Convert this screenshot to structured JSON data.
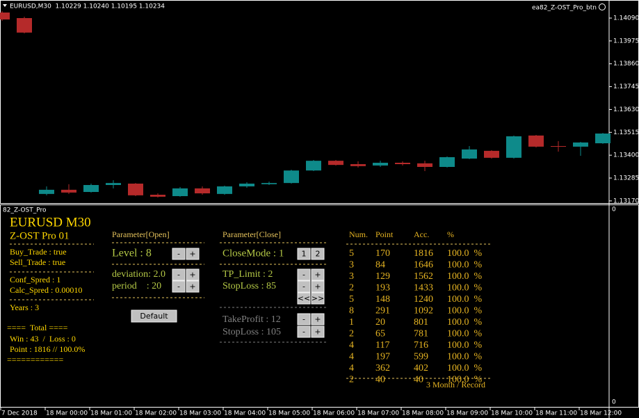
{
  "header": {
    "symbol": "EURUSD,M30  1.10229 1.10240 1.10195 1.10234",
    "button": "ea82_Z-OST_Pro_btn"
  },
  "chart_data": {
    "type": "candlestick",
    "bull_color": "#0e8a8a",
    "bear_color": "#b52a2a",
    "ylim": [
      1.13159,
      1.14132
    ],
    "yticks": [
      {
        "value": 1.1409,
        "label": "1.14090"
      },
      {
        "value": 1.13975,
        "label": "1.13975"
      },
      {
        "value": 1.1386,
        "label": "1.13860"
      },
      {
        "value": 1.13745,
        "label": "1.13745"
      },
      {
        "value": 1.1363,
        "label": "1.13630"
      },
      {
        "value": 1.13515,
        "label": "1.13515"
      },
      {
        "value": 1.134,
        "label": "1.13400"
      },
      {
        "value": 1.13285,
        "label": "1.13285"
      },
      {
        "value": 1.1317,
        "label": "1.13170"
      }
    ],
    "candles": [
      {
        "o": 1.14118,
        "h": 1.14125,
        "l": 1.14076,
        "c": 1.14083
      },
      {
        "o": 1.1409,
        "h": 1.14097,
        "l": 1.14013,
        "c": 1.14017
      },
      {
        "o": 1.13205,
        "h": 1.13243,
        "l": 1.13198,
        "c": 1.13226
      },
      {
        "o": 1.13226,
        "h": 1.13254,
        "l": 1.13205,
        "c": 1.13212
      },
      {
        "o": 1.13215,
        "h": 1.13257,
        "l": 1.13212,
        "c": 1.1325
      },
      {
        "o": 1.1325,
        "h": 1.13274,
        "l": 1.13233,
        "c": 1.1326
      },
      {
        "o": 1.13257,
        "h": 1.1326,
        "l": 1.13194,
        "c": 1.13198
      },
      {
        "o": 1.13201,
        "h": 1.13208,
        "l": 1.13187,
        "c": 1.13191
      },
      {
        "o": 1.13194,
        "h": 1.1324,
        "l": 1.13191,
        "c": 1.13233
      },
      {
        "o": 1.13233,
        "h": 1.13243,
        "l": 1.13201,
        "c": 1.13208
      },
      {
        "o": 1.13205,
        "h": 1.13247,
        "l": 1.13201,
        "c": 1.13243
      },
      {
        "o": 1.13243,
        "h": 1.13264,
        "l": 1.13236,
        "c": 1.13257
      },
      {
        "o": 1.13254,
        "h": 1.13267,
        "l": 1.1325,
        "c": 1.1326
      },
      {
        "o": 1.1326,
        "h": 1.13327,
        "l": 1.13257,
        "c": 1.13323
      },
      {
        "o": 1.13323,
        "h": 1.13376,
        "l": 1.1332,
        "c": 1.13372
      },
      {
        "o": 1.13372,
        "h": 1.13376,
        "l": 1.13348,
        "c": 1.13351
      },
      {
        "o": 1.13355,
        "h": 1.13369,
        "l": 1.13338,
        "c": 1.13345
      },
      {
        "o": 1.13348,
        "h": 1.13372,
        "l": 1.13341,
        "c": 1.13362
      },
      {
        "o": 1.13362,
        "h": 1.13369,
        "l": 1.13348,
        "c": 1.13355
      },
      {
        "o": 1.13359,
        "h": 1.13372,
        "l": 1.1332,
        "c": 1.13341
      },
      {
        "o": 1.13341,
        "h": 1.13394,
        "l": 1.13338,
        "c": 1.1339
      },
      {
        "o": 1.13383,
        "h": 1.13446,
        "l": 1.1338,
        "c": 1.13429
      },
      {
        "o": 1.13422,
        "h": 1.13425,
        "l": 1.13383,
        "c": 1.13387
      },
      {
        "o": 1.13387,
        "h": 1.13499,
        "l": 1.13383,
        "c": 1.13495
      },
      {
        "o": 1.13499,
        "h": 1.13502,
        "l": 1.13439,
        "c": 1.13443
      },
      {
        "o": 1.13446,
        "h": 1.13471,
        "l": 1.13418,
        "c": 1.13443
      },
      {
        "o": 1.13443,
        "h": 1.13467,
        "l": 1.13397,
        "c": 1.13464
      },
      {
        "o": 1.1346,
        "h": 1.13512,
        "l": 1.13457,
        "c": 1.13509
      }
    ]
  },
  "x_axis": {
    "labels": [
      "7 Dec 2018",
      "18 Mar 00:00",
      "18 Mar 01:00",
      "18 Mar 02:00",
      "18 Mar 03:00",
      "18 Mar 04:00",
      "18 Mar 05:00",
      "18 Mar 06:00",
      "18 Mar 07:00",
      "18 Mar 08:00",
      "18 Mar 09:00",
      "18 Mar 10:00",
      "18 Mar 11:00",
      "18 Mar 12:00"
    ]
  },
  "subwindow": {
    "title": "82_Z-OST_Pro",
    "scale_top": "0",
    "scale_bottom": "0"
  },
  "panel": {
    "summary": {
      "title": "EURUSD M30",
      "subtitle": "Z-OST Pro 01",
      "buy": "Buy_Trade : true",
      "sell": "Sell_Trade : true",
      "conf": "Conf_Spred : 1",
      "calc": "Calc_Spred : 0.00010",
      "years": "Years : 3",
      "total": "====  Total ====",
      "win_loss": "Win : 43  /  Loss : 0",
      "point": "Point : 1816 // 100.0%",
      "footer": "============"
    },
    "buttons": {
      "minus": "-",
      "plus": "+",
      "one": "1",
      "two": "2",
      "prev": "<<",
      "next": ">>"
    },
    "open": {
      "title": "Parameter[Open]",
      "level": "Level : 8",
      "deviation": "deviation: 2.0",
      "period": "period    : 20",
      "default": "Default"
    },
    "close": {
      "title": "Parameter[Close]",
      "close_mode": "CloseMode : 1",
      "tp_limit": "TP_Limit : 2",
      "stop_loss": "StopLoss : 85",
      "take_profit": "TakeProfit : 12",
      "stop_loss2": "StopLoss : 105"
    },
    "results": {
      "headers": [
        "Num.",
        "Point",
        "Acc.",
        "%"
      ],
      "rows": [
        [
          "5",
          "170",
          "1816",
          "100.0  %"
        ],
        [
          "3",
          "84",
          "1646",
          "100.0  %"
        ],
        [
          "3",
          "129",
          "1562",
          "100.0  %"
        ],
        [
          "2",
          "193",
          "1433",
          "100.0  %"
        ],
        [
          "5",
          "148",
          "1240",
          "100.0  %"
        ],
        [
          "8",
          "291",
          "1092",
          "100.0  %"
        ],
        [
          "1",
          "20",
          "801",
          "100.0  %"
        ],
        [
          "2",
          "65",
          "781",
          "100.0  %"
        ],
        [
          "4",
          "117",
          "716",
          "100.0  %"
        ],
        [
          "4",
          "197",
          "599",
          "100.0  %"
        ],
        [
          "4",
          "362",
          "402",
          "100.0  %"
        ],
        [
          "2",
          "40",
          "40",
          "100.0  %"
        ]
      ],
      "footer": "3 Month / Record"
    }
  }
}
